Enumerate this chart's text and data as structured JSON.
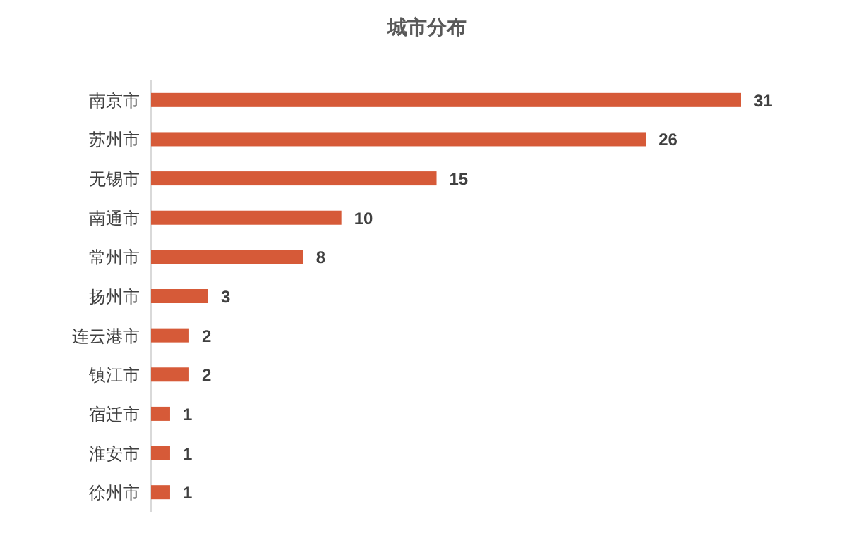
{
  "chart_data": {
    "type": "bar",
    "title": "城市分布",
    "orientation": "horizontal",
    "categories": [
      "南京市",
      "苏州市",
      "无锡市",
      "南通市",
      "常州市",
      "扬州市",
      "连云港市",
      "镇江市",
      "宿迁市",
      "淮安市",
      "徐州市"
    ],
    "values": [
      31,
      26,
      15,
      10,
      8,
      3,
      2,
      2,
      1,
      1,
      1
    ],
    "color": "#d65a38",
    "data_labels": true
  }
}
